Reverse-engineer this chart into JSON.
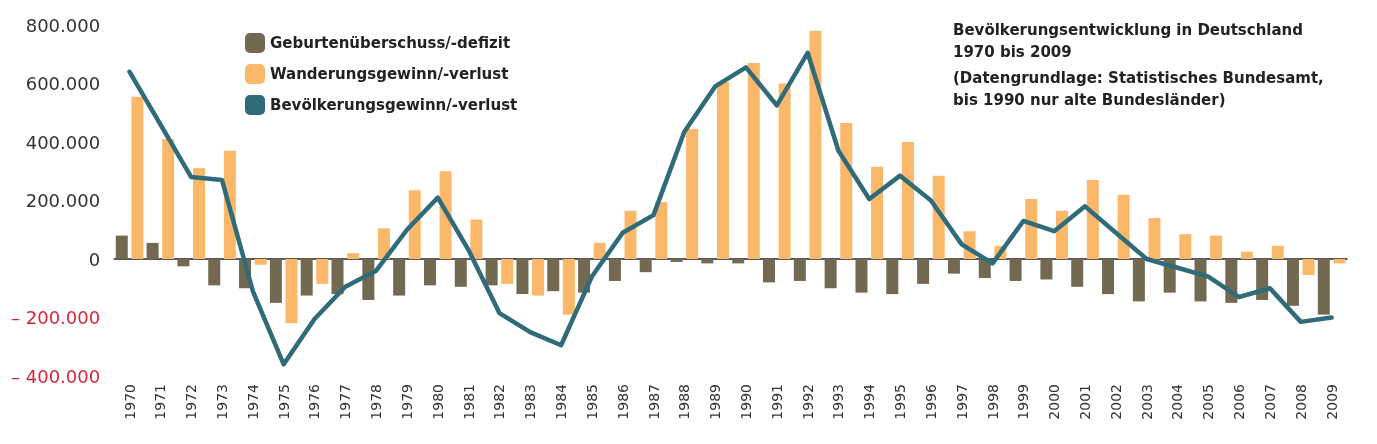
{
  "chart_data": {
    "type": "bar",
    "title": "Bevölkerungsentwicklung in Deutschland 1970 bis 2009",
    "subtitle": "(Datengrundlage: Statistisches Bundesamt, bis 1990 nur alte Bundesländer)",
    "categories": [
      "1970",
      "1971",
      "1972",
      "1973",
      "1974",
      "1975",
      "1976",
      "1977",
      "1978",
      "1979",
      "1980",
      "1981",
      "1982",
      "1983",
      "1984",
      "1985",
      "1986",
      "1987",
      "1988",
      "1989",
      "1990",
      "1991",
      "1992",
      "1993",
      "1994",
      "1995",
      "1996",
      "1997",
      "1998",
      "1999",
      "2000",
      "2001",
      "2002",
      "2003",
      "2004",
      "2005",
      "2006",
      "2007",
      "2008",
      "2009"
    ],
    "series": [
      {
        "name": "Geburtenüberschuss/-defizit",
        "color": "#736850",
        "values": [
          80000,
          55000,
          -25000,
          -90000,
          -100000,
          -150000,
          -125000,
          -120000,
          -140000,
          -125000,
          -90000,
          -95000,
          -90000,
          -120000,
          -110000,
          -115000,
          -75000,
          -45000,
          -10000,
          -15000,
          -15000,
          -80000,
          -75000,
          -100000,
          -115000,
          -120000,
          -85000,
          -50000,
          -65000,
          -75000,
          -70000,
          -95000,
          -120000,
          -145000,
          -115000,
          -145000,
          -150000,
          -140000,
          -160000,
          -190000
        ]
      },
      {
        "name": "Wanderungsgewinn/-verlust",
        "color": "#fbb86b",
        "values": [
          555000,
          410000,
          310000,
          370000,
          -20000,
          -220000,
          -85000,
          20000,
          105000,
          235000,
          300000,
          135000,
          -85000,
          -125000,
          -190000,
          55000,
          165000,
          195000,
          445000,
          605000,
          670000,
          600000,
          780000,
          465000,
          315000,
          400000,
          285000,
          95000,
          45000,
          205000,
          165000,
          270000,
          220000,
          140000,
          85000,
          80000,
          25000,
          45000,
          -55000,
          -15000
        ]
      },
      {
        "name": "Bevölkerungsgewinn/-verlust",
        "type": "line",
        "color": "#2f6b79",
        "values": [
          640000,
          460000,
          280000,
          270000,
          -110000,
          -360000,
          -205000,
          -95000,
          -40000,
          100000,
          210000,
          30000,
          -185000,
          -250000,
          -295000,
          -60000,
          90000,
          150000,
          435000,
          590000,
          655000,
          525000,
          705000,
          370000,
          205000,
          285000,
          200000,
          50000,
          -15000,
          130000,
          95000,
          180000,
          90000,
          0,
          -30000,
          -60000,
          -130000,
          -100000,
          -215000,
          -200000
        ]
      }
    ],
    "ylim": [
      -400000,
      800000
    ],
    "yticks": [
      {
        "value": -400000,
        "label": "– 400.000"
      },
      {
        "value": -200000,
        "label": "– 200.000"
      },
      0,
      {
        "value": 200000,
        "label": "200.000"
      },
      {
        "value": 400000,
        "label": "400.000"
      },
      {
        "value": 600000,
        "label": "600.000"
      },
      {
        "value": 800000,
        "label": "800.000"
      }
    ],
    "legend": "top left",
    "marker": "none",
    "line_style": "solid"
  }
}
